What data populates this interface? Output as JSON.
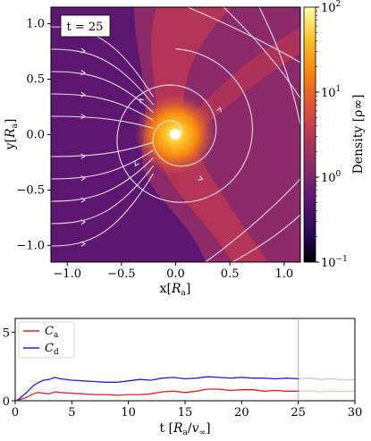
{
  "chart_data": [
    {
      "type": "heatmap",
      "annotation": "t = 25",
      "xlabel": {
        "main": "x[",
        "sym": "R",
        "sub": "a",
        "end": "]"
      },
      "ylabel": {
        "main": "y[",
        "sym": "R",
        "sub": "a",
        "end": "]"
      },
      "xlim": [
        -1.15,
        1.15
      ],
      "ylim": [
        -1.15,
        1.15
      ],
      "xticks": [
        -1.0,
        -0.5,
        0.0,
        0.5,
        1.0
      ],
      "xtick_labels": [
        "−1.0",
        "−0.5",
        "0.0",
        "0.5",
        "1.0"
      ],
      "yticks": [
        1.0,
        0.5,
        0.0,
        -0.5,
        -1.0
      ],
      "ytick_labels": [
        "1.0",
        "0.5",
        "0.0",
        "−0.5",
        "−1.0"
      ],
      "colorbar": {
        "scale": "log",
        "range": [
          0.1,
          100
        ],
        "ticks": [
          100,
          10,
          1,
          0.1
        ],
        "tick_labels": [
          {
            "base": "10",
            "exp": "2"
          },
          {
            "base": "10",
            "exp": "1"
          },
          {
            "base": "10",
            "exp": "0"
          },
          {
            "base": "10",
            "exp": "−1"
          }
        ],
        "label": "Density [ρ∞]",
        "colors": [
          "#000004",
          "#2c0a5e",
          "#5e1770",
          "#8d2a6a",
          "#bb3754",
          "#e25734",
          "#f8870e",
          "#fbc228",
          "#fcffa4"
        ]
      },
      "streamlines": "white arrowed streamlines spiralling into the accretor at the origin"
    },
    {
      "type": "line",
      "xlabel": {
        "main": "t [",
        "sym": "R",
        "sub": "a",
        "mid": "/",
        "sym2": "v",
        "sub2": "∞",
        "end": "]"
      },
      "xlim": [
        0,
        30
      ],
      "ylim": [
        0,
        6
      ],
      "xticks": [
        0,
        5,
        10,
        15,
        20,
        25,
        30
      ],
      "yticks": [
        0,
        5
      ],
      "vline_x": 25,
      "series": [
        {
          "name": "C",
          "sub": "a",
          "color": "#e02020",
          "x": [
            0,
            0.3,
            1,
            1.6,
            2,
            2.5,
            3,
            3.5,
            4,
            5,
            6,
            7,
            8,
            9,
            10,
            11,
            12,
            13,
            14,
            15,
            16,
            17,
            18,
            19,
            20,
            21,
            22,
            23,
            24,
            25,
            26,
            27,
            28,
            29,
            30
          ],
          "values": [
            0,
            0.05,
            0.25,
            0.5,
            0.6,
            0.55,
            0.5,
            0.65,
            0.6,
            0.55,
            0.5,
            0.45,
            0.45,
            0.4,
            0.45,
            0.45,
            0.5,
            0.65,
            0.7,
            0.6,
            0.7,
            0.85,
            0.85,
            0.75,
            0.8,
            0.8,
            0.7,
            0.75,
            0.7,
            0.7,
            0.72,
            0.65,
            0.7,
            0.68,
            0.7
          ]
        },
        {
          "name": "C",
          "sub": "d",
          "color": "#2020e0",
          "x": [
            0,
            0.3,
            1,
            1.6,
            2,
            2.5,
            3,
            3.5,
            4,
            5,
            6,
            7,
            8,
            9,
            10,
            11,
            12,
            13,
            14,
            15,
            16,
            17,
            18,
            19,
            20,
            21,
            22,
            23,
            24,
            25,
            26,
            27,
            28,
            29,
            30
          ],
          "values": [
            0,
            0.1,
            0.6,
            1.1,
            1.3,
            1.5,
            1.55,
            1.7,
            1.6,
            1.5,
            1.45,
            1.4,
            1.35,
            1.35,
            1.45,
            1.55,
            1.5,
            1.65,
            1.7,
            1.6,
            1.65,
            1.75,
            1.7,
            1.65,
            1.7,
            1.65,
            1.65,
            1.6,
            1.65,
            1.6,
            1.65,
            1.55,
            1.6,
            1.5,
            1.55
          ]
        }
      ]
    }
  ]
}
